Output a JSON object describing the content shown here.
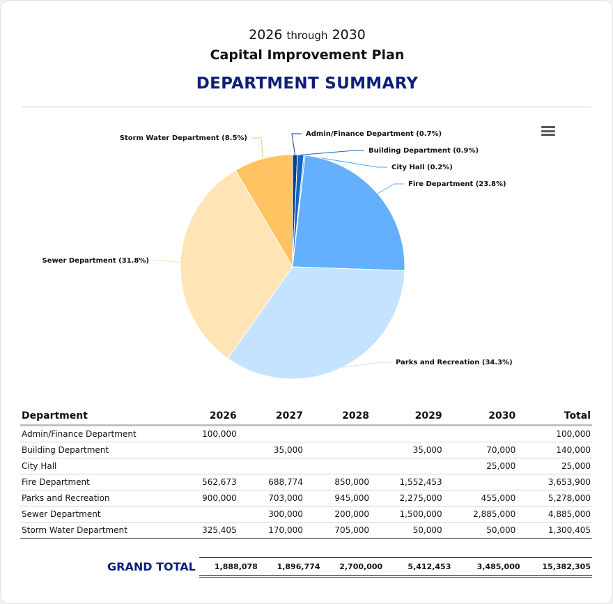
{
  "header": {
    "year_start": "2026",
    "through": "through",
    "year_end": "2030",
    "plan_title": "Capital Improvement Plan",
    "summary_title": "DEPARTMENT SUMMARY"
  },
  "toolbar": {
    "menu_icon": "hamburger-menu-icon"
  },
  "chart_data": {
    "type": "pie",
    "slices": [
      {
        "label": "Admin/Finance Department (0.7%)",
        "value": 0.7,
        "color": "#0b3f8f"
      },
      {
        "label": "Building Department (0.9%)",
        "value": 0.9,
        "color": "#1565c0"
      },
      {
        "label": "City Hall (0.2%)",
        "value": 0.2,
        "color": "#42a5f5"
      },
      {
        "label": "Fire Department (23.8%)",
        "value": 23.8,
        "color": "#64b0ff"
      },
      {
        "label": "Parks and Recreation (34.3%)",
        "value": 34.3,
        "color": "#c5e3ff"
      },
      {
        "label": "Sewer Department (31.8%)",
        "value": 31.8,
        "color": "#ffe4b5"
      },
      {
        "label": "Storm Water Department (8.5%)",
        "value": 8.5,
        "color": "#ffc461"
      }
    ]
  },
  "table": {
    "columns": [
      "Department",
      "2026",
      "2027",
      "2028",
      "2029",
      "2030",
      "Total"
    ],
    "rows": [
      [
        "Admin/Finance Department",
        "100,000",
        "",
        "",
        "",
        "",
        "100,000"
      ],
      [
        "Building Department",
        "",
        "35,000",
        "",
        "35,000",
        "70,000",
        "140,000"
      ],
      [
        "City Hall",
        "",
        "",
        "",
        "",
        "25,000",
        "25,000"
      ],
      [
        "Fire Department",
        "562,673",
        "688,774",
        "850,000",
        "1,552,453",
        "",
        "3,653,900"
      ],
      [
        "Parks and Recreation",
        "900,000",
        "703,000",
        "945,000",
        "2,275,000",
        "455,000",
        "5,278,000"
      ],
      [
        "Sewer Department",
        "",
        "300,000",
        "200,000",
        "1,500,000",
        "2,885,000",
        "4,885,000"
      ],
      [
        "Storm Water Department",
        "325,405",
        "170,000",
        "705,000",
        "50,000",
        "50,000",
        "1,300,405"
      ]
    ]
  },
  "grand_total": {
    "label": "GRAND TOTAL",
    "values": [
      "1,888,078",
      "1,896,774",
      "2,700,000",
      "5,412,453",
      "3,485,000",
      "15,382,305"
    ]
  }
}
